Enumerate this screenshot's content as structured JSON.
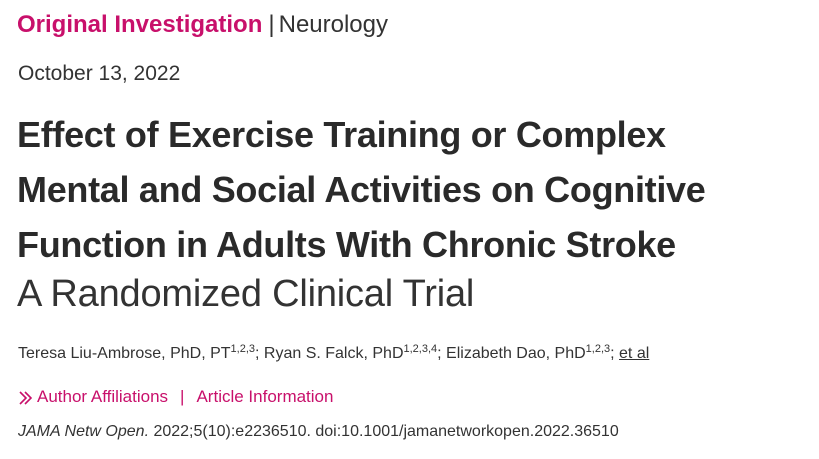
{
  "header": {
    "article_type": "Original Investigation",
    "separator": "|",
    "subject": "Neurology"
  },
  "pub_date": "October 13, 2022",
  "title": {
    "line1": "Effect of Exercise Training or Complex",
    "line2": "Mental and Social Activities on Cognitive",
    "line3": "Function in Adults With Chronic Stroke"
  },
  "subtitle": "A Randomized Clinical Trial",
  "authors": [
    {
      "name": "Teresa Liu-Ambrose, PhD, PT",
      "affiliations": "1,2,3",
      "sep": "; "
    },
    {
      "name": "Ryan S. Falck, PhD",
      "affiliations": "1,2,3,4",
      "sep": "; "
    },
    {
      "name": "Elizabeth Dao, PhD",
      "affiliations": "1,2,3",
      "sep": "; "
    }
  ],
  "et_al": "et al",
  "info_links": {
    "affiliations": "Author Affiliations",
    "separator": "|",
    "article_info": "Article Information",
    "icon": "double-chevron-right-icon"
  },
  "citation": {
    "journal": "JAMA Netw Open.",
    "details": " 2022;5(10):e2236510. doi:10.1001/jamanetworkopen.2022.36510"
  },
  "colors": {
    "accent": "#c8106b",
    "text": "#333333"
  }
}
